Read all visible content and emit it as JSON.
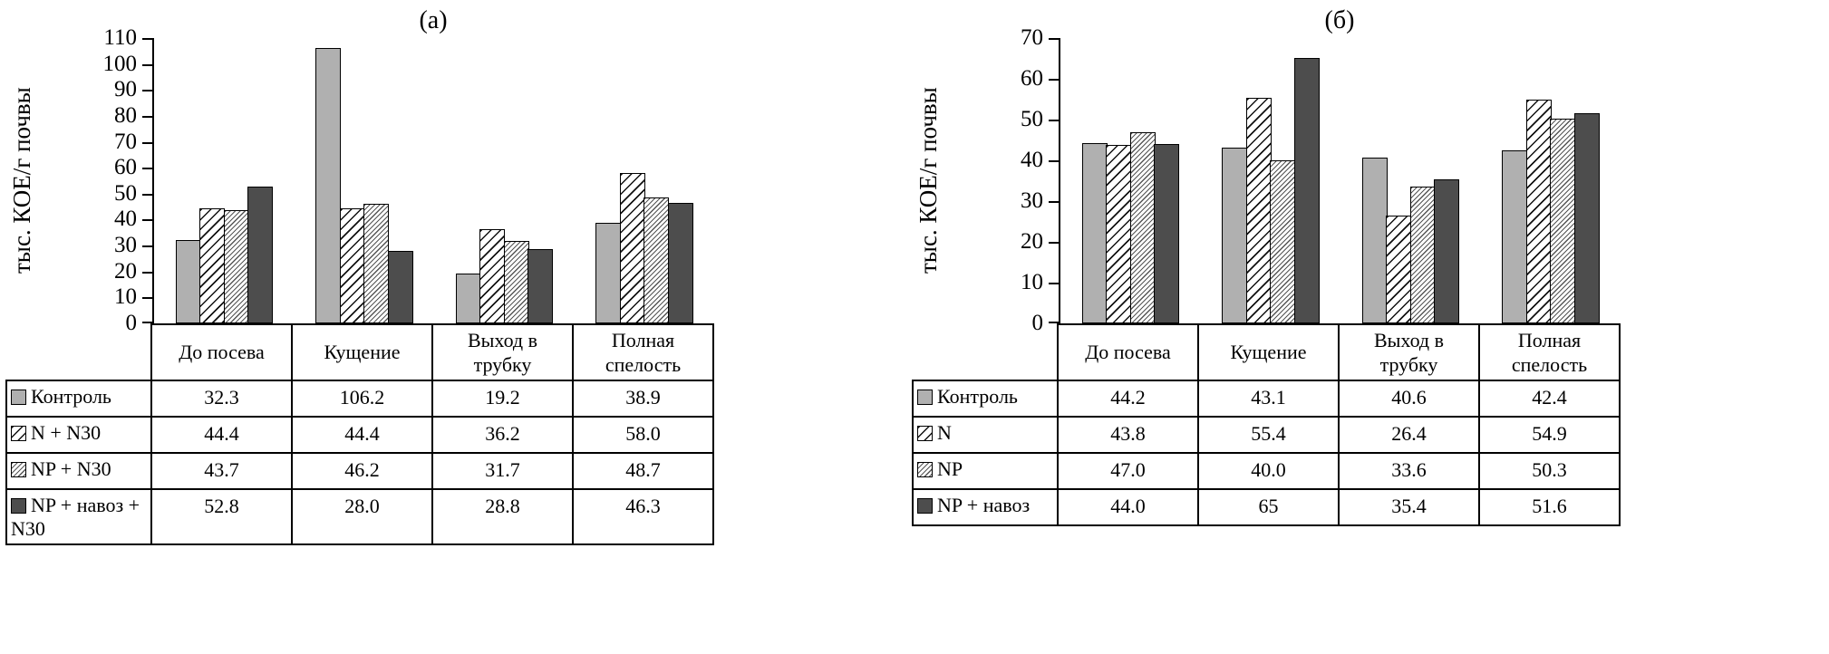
{
  "chart_data": [
    {
      "type": "bar",
      "title": "(а)",
      "ylabel": "тыс. КОЕ/г почвы",
      "ylim": [
        0,
        110
      ],
      "ytick_step": 10,
      "grid": false,
      "legend_position": "table-left-column",
      "categories": [
        "До посева",
        "Кущение",
        "Выход в трубку",
        "Полная спелость"
      ],
      "series": [
        {
          "name": "Контроль",
          "style": "solid-light",
          "values": [
            32.3,
            106.2,
            19.2,
            38.9
          ],
          "labels": [
            "32.3",
            "106.2",
            "19.2",
            "38.9"
          ]
        },
        {
          "name": "N + N30",
          "style": "hatch-wide",
          "values": [
            44.4,
            44.4,
            36.2,
            58.0
          ],
          "labels": [
            "44.4",
            "44.4",
            "36.2",
            "58.0"
          ]
        },
        {
          "name": "NP + N30",
          "style": "hatch-fine",
          "values": [
            43.7,
            46.2,
            31.7,
            48.7
          ],
          "labels": [
            "43.7",
            "46.2",
            "31.7",
            "48.7"
          ]
        },
        {
          "name": "NP + навоз + N30",
          "style": "solid-dark",
          "values": [
            52.8,
            28.0,
            28.8,
            46.3
          ],
          "labels": [
            "52.8",
            "28.0",
            "28.8",
            "46.3"
          ]
        }
      ]
    },
    {
      "type": "bar",
      "title": "(б)",
      "ylabel": "тыс. КОЕ/г почвы",
      "ylim": [
        0,
        70
      ],
      "ytick_step": 10,
      "grid": false,
      "legend_position": "table-left-column",
      "categories": [
        "До посева",
        "Кущение",
        "Выход в трубку",
        "Полная спелость"
      ],
      "series": [
        {
          "name": "Контроль",
          "style": "solid-light",
          "values": [
            44.2,
            43.1,
            40.6,
            42.4
          ],
          "labels": [
            "44.2",
            "43.1",
            "40.6",
            "42.4"
          ]
        },
        {
          "name": "N",
          "style": "hatch-wide",
          "values": [
            43.8,
            55.4,
            26.4,
            54.9
          ],
          "labels": [
            "43.8",
            "55.4",
            "26.4",
            "54.9"
          ]
        },
        {
          "name": "NP",
          "style": "hatch-fine",
          "values": [
            47.0,
            40.0,
            33.6,
            50.3
          ],
          "labels": [
            "47.0",
            "40.0",
            "33.6",
            "50.3"
          ]
        },
        {
          "name": "NP + навоз",
          "style": "solid-dark",
          "values": [
            44.0,
            65,
            35.4,
            51.6
          ],
          "labels": [
            "44.0",
            "65",
            "35.4",
            "51.6"
          ]
        }
      ]
    }
  ],
  "colors": {
    "solid_light": "#b0b0b0",
    "solid_dark": "#4d4d4d",
    "hatch_line": "#111111",
    "axis": "#000000"
  }
}
